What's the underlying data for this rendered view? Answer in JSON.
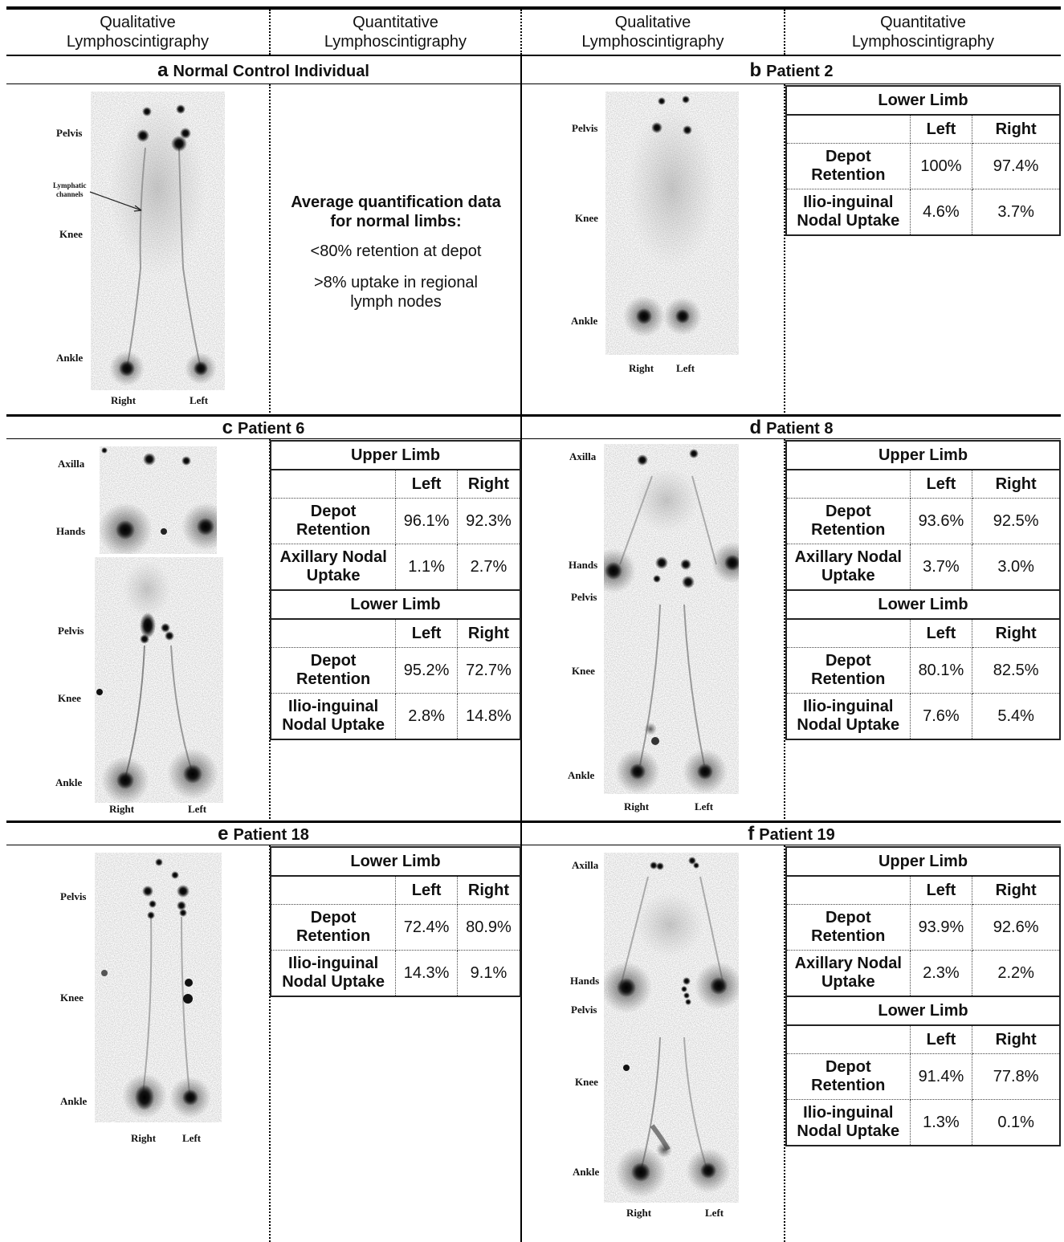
{
  "column_headers": [
    "Qualitative Lymphoscintigraphy",
    "Quantitative Lymphoscintigraphy",
    "Qualitative Lymphoscintigraphy",
    "Quantitative Lymphoscintigraphy"
  ],
  "col_head_line1": [
    "Qualitative",
    "Quantitative",
    "Qualitative",
    "Quantitative"
  ],
  "col_head_line2": [
    "Lymphoscintigraphy",
    "Lymphoscintigraphy",
    "Lymphoscintigraphy",
    "Lymphoscintigraphy"
  ],
  "panels": {
    "a": {
      "letter": "a",
      "title": "Normal Control Individual",
      "labels": {
        "pelvis": "Pelvis",
        "channels1": "Lymphatic",
        "channels2": "channels",
        "knee": "Knee",
        "ankle": "Ankle",
        "right": "Right",
        "left": "Left"
      },
      "norm": {
        "head1": "Average quantification data",
        "head2": "for normal limbs:",
        "line1": "<80% retention at depot",
        "line2a": ">8% uptake in regional",
        "line2b": "lymph nodes"
      }
    },
    "b": {
      "letter": "b",
      "title": "Patient 2",
      "labels": {
        "pelvis": "Pelvis",
        "knee": "Knee",
        "ankle": "Ankle",
        "right": "Right",
        "left": "Left"
      },
      "lower": {
        "title": "Lower Limb",
        "left": "Left",
        "right": "Right",
        "depot": {
          "l1": "Depot",
          "l2": "Retention",
          "left": "100%",
          "right": "97.4%"
        },
        "nodal": {
          "l1": "Ilio-inguinal",
          "l2": "Nodal Uptake",
          "left": "4.6%",
          "right": "3.7%"
        }
      }
    },
    "c": {
      "letter": "c",
      "title": "Patient 6",
      "labels": {
        "axilla": "Axilla",
        "hands": "Hands",
        "pelvis": "Pelvis",
        "knee": "Knee",
        "ankle": "Ankle",
        "right": "Right",
        "left": "Left"
      },
      "upper": {
        "title": "Upper Limb",
        "left": "Left",
        "right": "Right",
        "depot": {
          "l1": "Depot",
          "l2": "Retention",
          "left": "96.1%",
          "right": "92.3%"
        },
        "nodal": {
          "l1": "Axillary Nodal",
          "l2": "Uptake",
          "left": "1.1%",
          "right": "2.7%"
        }
      },
      "lower": {
        "title": "Lower Limb",
        "left": "Left",
        "right": "Right",
        "depot": {
          "l1": "Depot",
          "l2": "Retention",
          "left": "95.2%",
          "right": "72.7%"
        },
        "nodal": {
          "l1": "Ilio-inguinal",
          "l2": "Nodal Uptake",
          "left": "2.8%",
          "right": "14.8%"
        }
      }
    },
    "d": {
      "letter": "d",
      "title": "Patient 8",
      "labels": {
        "axilla": "Axilla",
        "hands": "Hands",
        "pelvis": "Pelvis",
        "knee": "Knee",
        "ankle": "Ankle",
        "right": "Right",
        "left": "Left"
      },
      "upper": {
        "title": "Upper Limb",
        "left": "Left",
        "right": "Right",
        "depot": {
          "l1": "Depot",
          "l2": "Retention",
          "left": "93.6%",
          "right": "92.5%"
        },
        "nodal": {
          "l1": "Axillary Nodal",
          "l2": "Uptake",
          "left": "3.7%",
          "right": "3.0%"
        }
      },
      "lower": {
        "title": "Lower Limb",
        "left": "Left",
        "right": "Right",
        "depot": {
          "l1": "Depot",
          "l2": "Retention",
          "left": "80.1%",
          "right": "82.5%"
        },
        "nodal": {
          "l1": "Ilio-inguinal",
          "l2": "Nodal Uptake",
          "left": "7.6%",
          "right": "5.4%"
        }
      }
    },
    "e": {
      "letter": "e",
      "title": "Patient 18",
      "labels": {
        "pelvis": "Pelvis",
        "knee": "Knee",
        "ankle": "Ankle",
        "right": "Right",
        "left": "Left"
      },
      "lower": {
        "title": "Lower Limb",
        "left": "Left",
        "right": "Right",
        "depot": {
          "l1": "Depot",
          "l2": "Retention",
          "left": "72.4%",
          "right": "80.9%"
        },
        "nodal": {
          "l1": "Ilio-inguinal",
          "l2": "Nodal Uptake",
          "left": "14.3%",
          "right": "9.1%"
        }
      }
    },
    "f": {
      "letter": "f",
      "title": "Patient 19",
      "labels": {
        "axilla": "Axilla",
        "hands": "Hands",
        "pelvis": "Pelvis",
        "knee": "Knee",
        "ankle": "Ankle",
        "right": "Right",
        "left": "Left"
      },
      "upper": {
        "title": "Upper Limb",
        "left": "Left",
        "right": "Right",
        "depot": {
          "l1": "Depot",
          "l2": "Retention",
          "left": "93.9%",
          "right": "92.6%"
        },
        "nodal": {
          "l1": "Axillary Nodal",
          "l2": "Uptake",
          "left": "2.3%",
          "right": "2.2%"
        }
      },
      "lower": {
        "title": "Lower Limb",
        "left": "Left",
        "right": "Right",
        "depot": {
          "l1": "Depot",
          "l2": "Retention",
          "left": "91.4%",
          "right": "77.8%"
        },
        "nodal": {
          "l1": "Ilio-inguinal",
          "l2": "Nodal Uptake",
          "left": "1.3%",
          "right": "0.1%"
        }
      }
    }
  }
}
